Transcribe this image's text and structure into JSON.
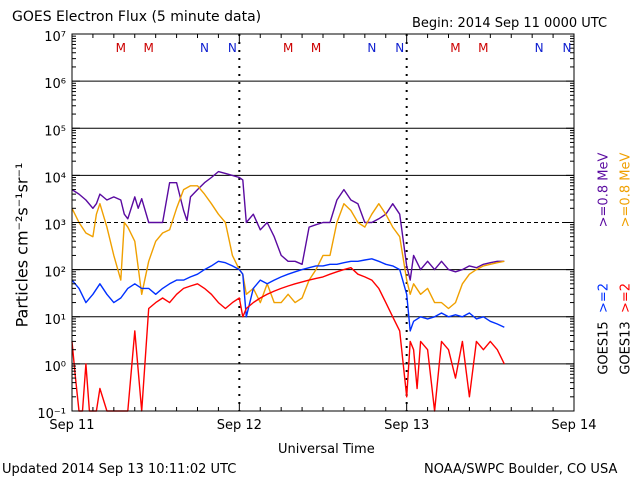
{
  "header": {
    "title": "GOES Electron Flux (5 minute data)",
    "begin": "Begin: 2014 Sep 11 0000 UTC"
  },
  "footer": {
    "updated": "Updated 2014 Sep 13 10:11:02 UTC",
    "credit": "NOAA/SWPC Boulder, CO USA"
  },
  "colors": {
    "goes15_low": "#5a0aa0",
    "goes13_low": "#f0a000",
    "goes15_high": "#0030ff",
    "goes13_high": "#ff0000",
    "marker_m": "#cc0000",
    "marker_n": "#1020d0"
  },
  "chart_data": {
    "type": "line",
    "title": "GOES Electron Flux (5 minute data)",
    "xlabel": "Universal Time",
    "ylabel": "Particles cm⁻²s⁻¹sr⁻¹",
    "x_ticks": [
      "Sep 11",
      "Sep 12",
      "Sep 13",
      "Sep 14"
    ],
    "xlim": [
      0,
      72
    ],
    "ylim": [
      0.1,
      10000000
    ],
    "yscale": "log",
    "y_ticks": [
      "10⁻¹",
      "10⁰",
      "10¹",
      "10²",
      "10³",
      "10⁴",
      "10⁵",
      "10⁶",
      "10⁷"
    ],
    "grid": "horizontal at each decade; dashed line at 1000",
    "legend": [
      {
        "satellite": "GOES15",
        "channel": ">=2",
        "channel_color": "#0030ff",
        "channel2": ">=0.8 MeV",
        "channel2_color": "#5a0aa0"
      },
      {
        "satellite": "GOES13",
        "channel": ">=2",
        "channel_color": "#ff0000",
        "channel2": ">=0.8 MeV",
        "channel2_color": "#f0a000"
      }
    ],
    "markers": [
      {
        "label": "M",
        "x": 7
      },
      {
        "label": "M",
        "x": 11
      },
      {
        "label": "N",
        "x": 19
      },
      {
        "label": "N",
        "x": 23
      },
      {
        "label": "M",
        "x": 31
      },
      {
        "label": "M",
        "x": 35
      },
      {
        "label": "N",
        "x": 43
      },
      {
        "label": "N",
        "x": 47
      },
      {
        "label": "M",
        "x": 55
      },
      {
        "label": "M",
        "x": 59
      },
      {
        "label": "N",
        "x": 67
      },
      {
        "label": "N",
        "x": 71
      }
    ],
    "series": [
      {
        "name": "GOES15 >=0.8 MeV",
        "color": "#5a0aa0",
        "x": [
          0,
          1,
          2,
          3,
          3.5,
          4,
          5,
          6,
          7,
          7.5,
          8,
          9,
          9.5,
          10,
          11,
          12,
          13,
          14,
          15,
          16,
          16.5,
          17,
          18,
          19,
          20,
          21,
          22,
          23,
          24,
          24.5,
          25,
          26,
          27,
          28,
          29,
          30,
          31,
          32,
          33,
          34,
          35,
          36,
          37,
          38,
          39,
          40,
          41,
          42,
          43,
          44,
          45,
          46,
          47,
          48,
          48.5,
          49,
          50,
          51,
          52,
          53,
          54,
          55,
          56,
          57,
          58,
          59,
          60,
          61,
          62
        ],
        "y": [
          5000,
          4000,
          3000,
          2000,
          2500,
          4000,
          3000,
          3500,
          3000,
          1500,
          1200,
          3500,
          2000,
          3200,
          1000,
          1000,
          1000,
          7000,
          7000,
          1800,
          1100,
          3500,
          5000,
          7000,
          9000,
          12000,
          11000,
          10000,
          9000,
          8000,
          1000,
          1500,
          700,
          1000,
          500,
          200,
          150,
          150,
          130,
          800,
          900,
          1000,
          1000,
          3000,
          5000,
          3000,
          2500,
          1000,
          1000,
          1200,
          1500,
          2500,
          1500,
          120,
          60,
          200,
          100,
          150,
          100,
          150,
          100,
          90,
          100,
          120,
          110,
          130,
          140,
          150,
          150
        ]
      },
      {
        "name": "GOES13 >=0.8 MeV",
        "color": "#f0a000",
        "x": [
          0,
          1,
          2,
          3,
          3.5,
          4,
          5,
          6,
          7,
          7.5,
          8,
          9,
          10,
          11,
          12,
          13,
          14,
          15,
          16,
          17,
          18,
          19,
          20,
          21,
          22,
          23,
          24,
          24.5,
          25,
          26,
          27,
          28,
          29,
          30,
          31,
          32,
          33,
          34,
          35,
          36,
          37,
          38,
          39,
          40,
          41,
          42,
          43,
          44,
          45,
          46,
          47,
          48,
          48.5,
          49,
          50,
          51,
          52,
          53,
          54,
          55,
          56,
          57,
          58,
          59,
          60,
          61,
          62
        ],
        "y": [
          2000,
          1000,
          600,
          500,
          1500,
          2500,
          800,
          200,
          60,
          1000,
          800,
          400,
          30,
          150,
          400,
          600,
          700,
          2000,
          5000,
          6000,
          6000,
          4000,
          2500,
          1500,
          1000,
          200,
          100,
          80,
          30,
          40,
          20,
          50,
          20,
          20,
          30,
          20,
          25,
          60,
          100,
          200,
          200,
          1000,
          2500,
          1800,
          1000,
          800,
          1500,
          2500,
          1500,
          800,
          500,
          60,
          30,
          50,
          30,
          40,
          20,
          20,
          15,
          20,
          50,
          80,
          100,
          120,
          130,
          140,
          150
        ]
      },
      {
        "name": "GOES15 >=2",
        "color": "#0030ff",
        "x": [
          0,
          1,
          2,
          3,
          4,
          5,
          6,
          7,
          8,
          9,
          10,
          11,
          12,
          13,
          14,
          15,
          16,
          17,
          18,
          19,
          20,
          21,
          22,
          23,
          24,
          24.5,
          25,
          26,
          27,
          28,
          29,
          30,
          31,
          32,
          33,
          34,
          35,
          36,
          37,
          38,
          39,
          40,
          41,
          42,
          43,
          44,
          45,
          46,
          47,
          48,
          48.5,
          49,
          50,
          51,
          52,
          53,
          54,
          55,
          56,
          57,
          58,
          59,
          60,
          61,
          62
        ],
        "y": [
          60,
          40,
          20,
          30,
          50,
          30,
          20,
          25,
          40,
          50,
          40,
          40,
          30,
          40,
          50,
          60,
          60,
          70,
          80,
          100,
          120,
          150,
          140,
          120,
          100,
          80,
          10,
          40,
          60,
          50,
          60,
          70,
          80,
          90,
          100,
          110,
          120,
          120,
          130,
          130,
          140,
          150,
          150,
          160,
          170,
          150,
          130,
          120,
          100,
          30,
          5,
          8,
          10,
          9,
          10,
          12,
          10,
          11,
          10,
          12,
          9,
          10,
          8,
          7,
          6
        ]
      },
      {
        "name": "GOES13 >=2",
        "color": "#ff0000",
        "x": [
          0,
          0.5,
          1,
          1.5,
          2,
          2.5,
          3,
          3.5,
          4,
          5,
          6,
          7,
          8,
          9,
          10,
          11,
          12,
          13,
          14,
          15,
          16,
          17,
          18,
          19,
          20,
          21,
          22,
          23,
          24,
          24.5,
          25,
          26,
          27,
          28,
          29,
          30,
          31,
          32,
          33,
          34,
          35,
          36,
          37,
          38,
          39,
          40,
          41,
          42,
          43,
          44,
          45,
          46,
          47,
          48,
          48.5,
          49,
          49.5,
          50,
          51,
          52,
          53,
          54,
          55,
          56,
          57,
          58,
          59,
          60,
          61,
          62
        ],
        "y": [
          3,
          0.5,
          0.1,
          0.1,
          1,
          0.1,
          0.1,
          0.1,
          0.3,
          0.1,
          0.1,
          0.1,
          0.1,
          5,
          0.1,
          15,
          20,
          25,
          20,
          30,
          40,
          45,
          50,
          40,
          30,
          20,
          15,
          20,
          25,
          10,
          15,
          20,
          25,
          30,
          35,
          40,
          45,
          50,
          55,
          60,
          65,
          70,
          80,
          90,
          100,
          110,
          80,
          70,
          60,
          40,
          20,
          10,
          5,
          0.2,
          3,
          2,
          0.3,
          3,
          2,
          0.1,
          3,
          2,
          0.5,
          3,
          0.2,
          3,
          2,
          3,
          2,
          1
        ]
      }
    ]
  }
}
